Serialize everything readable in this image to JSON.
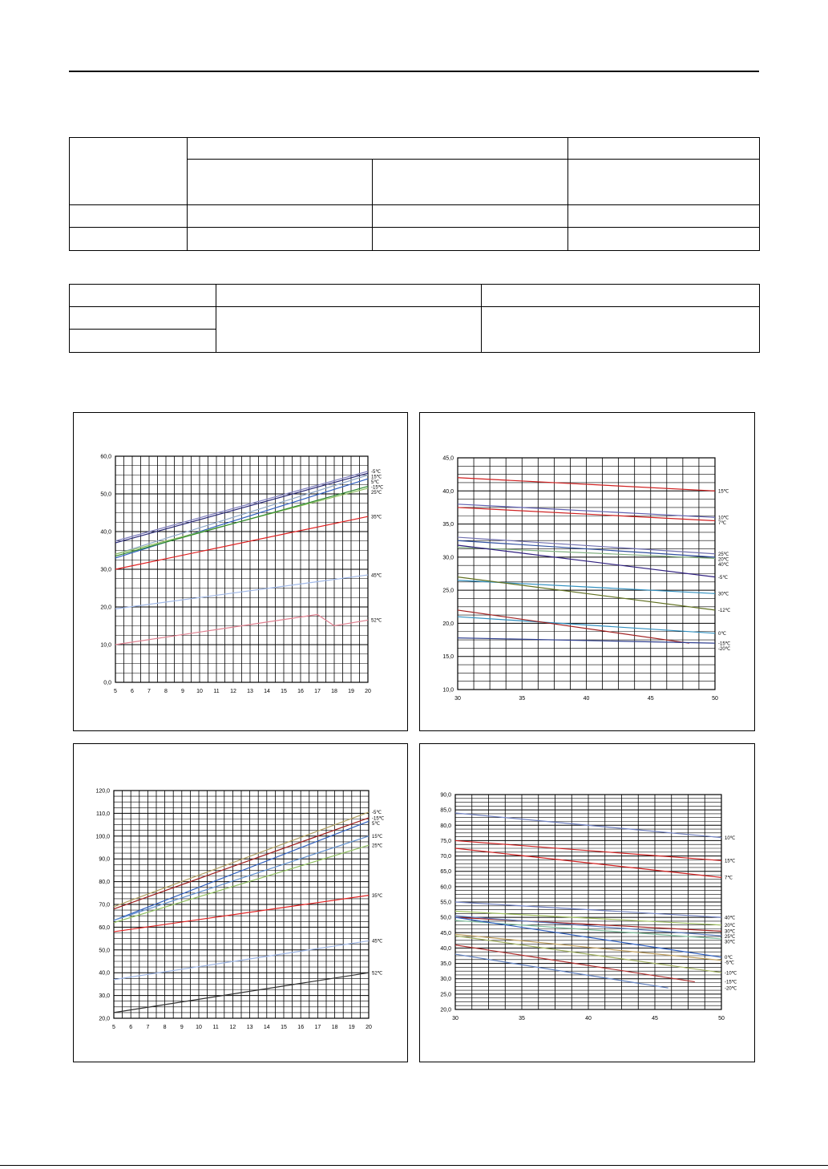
{
  "page": {
    "page_number": ""
  },
  "table1": {
    "rows": [
      [
        "",
        "",
        "",
        ""
      ],
      [
        "",
        "",
        "",
        ""
      ],
      [
        "",
        "",
        "",
        ""
      ],
      [
        "",
        "",
        "",
        ""
      ]
    ]
  },
  "table2": {
    "rows": [
      [
        "",
        "",
        ""
      ],
      [
        "",
        "",
        ""
      ],
      [
        "",
        "",
        ""
      ]
    ]
  },
  "chart_data": [
    {
      "type": "line",
      "title": "",
      "xlabel": "",
      "ylabel": "",
      "xlim": [
        5,
        20
      ],
      "ylim": [
        0,
        60
      ],
      "x_ticks": [
        "5",
        "6",
        "7",
        "8",
        "9",
        "10",
        "11",
        "12",
        "13",
        "14",
        "15",
        "16",
        "17",
        "18",
        "19",
        "20"
      ],
      "y_ticks": [
        "0,0",
        "10,0",
        "20,0",
        "30,0",
        "40,0",
        "50,0",
        "60,0"
      ],
      "grid": true,
      "series": [
        {
          "name": "-5℃",
          "color": "#7f7fbf",
          "x": [
            5,
            20
          ],
          "y": [
            37.5,
            56.0
          ]
        },
        {
          "name": "15℃",
          "color": "#2a2a7a",
          "x": [
            5,
            20
          ],
          "y": [
            37.0,
            55.5
          ]
        },
        {
          "name": "5℃",
          "color": "#8fa8c8",
          "x": [
            5,
            20
          ],
          "y": [
            34.0,
            55.0
          ]
        },
        {
          "name": "-15℃",
          "color": "#3060c0",
          "x": [
            5,
            20
          ],
          "y": [
            33.0,
            54.0
          ]
        },
        {
          "name": "25℃",
          "color": "#90c060",
          "x": [
            5,
            20
          ],
          "y": [
            34.0,
            51.5
          ]
        },
        {
          "name": "",
          "color": "#2e8b2e",
          "x": [
            5,
            20
          ],
          "y": [
            33.5,
            52.0
          ]
        },
        {
          "name": "35℃",
          "color": "#e02020",
          "x": [
            5,
            20
          ],
          "y": [
            30.0,
            44.0
          ]
        },
        {
          "name": "45℃",
          "color": "#a0b8e8",
          "x": [
            5,
            20
          ],
          "y": [
            19.5,
            28.5
          ]
        },
        {
          "name": "52℃",
          "color": "#e08090",
          "x": [
            5,
            17,
            18,
            20
          ],
          "y": [
            10.0,
            18.0,
            15.0,
            16.5
          ]
        }
      ]
    },
    {
      "type": "line",
      "title": "",
      "xlabel": "",
      "ylabel": "",
      "xlim": [
        30,
        50
      ],
      "ylim": [
        10,
        45
      ],
      "x_ticks": [
        "30",
        "35",
        "40",
        "45",
        "50"
      ],
      "y_ticks": [
        "10,0",
        "15,0",
        "20,0",
        "25,0",
        "30,0",
        "35,0",
        "40,0",
        "45,0"
      ],
      "grid": true,
      "series": [
        {
          "name": "15℃",
          "color": "#d02020",
          "x": [
            30,
            50
          ],
          "y": [
            42.0,
            40.0
          ]
        },
        {
          "name": "10℃",
          "color": "#6060b0",
          "x": [
            30,
            50
          ],
          "y": [
            38.0,
            36.0
          ]
        },
        {
          "name": "7℃",
          "color": "#d02020",
          "x": [
            30,
            50
          ],
          "y": [
            37.5,
            35.5
          ]
        },
        {
          "name": "25℃",
          "color": "#7070b0",
          "x": [
            30,
            50
          ],
          "y": [
            33.0,
            30.5
          ]
        },
        {
          "name": "20℃",
          "color": "#3050a0",
          "x": [
            30,
            50
          ],
          "y": [
            32.5,
            30.0
          ]
        },
        {
          "name": "40℃",
          "color": "#80b080",
          "x": [
            30,
            50
          ],
          "y": [
            31.5,
            29.8
          ]
        },
        {
          "name": "-5℃",
          "color": "#302080",
          "x": [
            30,
            50
          ],
          "y": [
            31.8,
            27.0
          ]
        },
        {
          "name": "30℃",
          "color": "#3090c0",
          "x": [
            30,
            50
          ],
          "y": [
            26.5,
            24.5
          ]
        },
        {
          "name": "-12℃",
          "color": "#607020",
          "x": [
            30,
            50
          ],
          "y": [
            27.0,
            22.0
          ]
        },
        {
          "name": "0℃",
          "color": "#3090c0",
          "x": [
            30,
            50
          ],
          "y": [
            21.0,
            18.5
          ]
        },
        {
          "name": "-15℃",
          "color": "#a02020",
          "x": [
            30,
            48
          ],
          "y": [
            22.0,
            17.0
          ]
        },
        {
          "name": "-20℃",
          "color": "#304090",
          "x": [
            30,
            50
          ],
          "y": [
            17.8,
            17.0
          ]
        }
      ]
    },
    {
      "type": "line",
      "title": "",
      "xlabel": "",
      "ylabel": "",
      "xlim": [
        5,
        20
      ],
      "ylim": [
        20,
        120
      ],
      "x_ticks": [
        "5",
        "6",
        "7",
        "8",
        "9",
        "10",
        "11",
        "12",
        "13",
        "14",
        "15",
        "16",
        "17",
        "18",
        "19",
        "20"
      ],
      "y_ticks": [
        "20,0",
        "30,0",
        "40,0",
        "50,0",
        "60,0",
        "70,0",
        "80,0",
        "90,0",
        "100,0",
        "110,0",
        "120,0"
      ],
      "grid": true,
      "series": [
        {
          "name": "-5℃",
          "color": "#b0a060",
          "x": [
            5,
            20
          ],
          "y": [
            69.0,
            110.5
          ]
        },
        {
          "name": "-15℃",
          "color": "#a02020",
          "x": [
            5,
            20
          ],
          "y": [
            68.0,
            108.0
          ]
        },
        {
          "name": "5℃",
          "color": "#3060c0",
          "x": [
            5,
            20
          ],
          "y": [
            63.0,
            106.5
          ]
        },
        {
          "name": "15℃",
          "color": "#6090d0",
          "x": [
            5,
            20
          ],
          "y": [
            63.0,
            100.0
          ]
        },
        {
          "name": "25℃",
          "color": "#90c060",
          "x": [
            5,
            20
          ],
          "y": [
            62.0,
            96.0
          ]
        },
        {
          "name": "35℃",
          "color": "#e02020",
          "x": [
            5,
            20
          ],
          "y": [
            58.0,
            74.0
          ]
        },
        {
          "name": "45℃",
          "color": "#a0b8e8",
          "x": [
            5,
            20
          ],
          "y": [
            37.0,
            54.0
          ]
        },
        {
          "name": "52℃",
          "color": "#303030",
          "x": [
            5,
            20
          ],
          "y": [
            22.5,
            40.0
          ]
        }
      ]
    },
    {
      "type": "line",
      "title": "",
      "xlabel": "",
      "ylabel": "",
      "xlim": [
        30,
        50
      ],
      "ylim": [
        20,
        90
      ],
      "x_ticks": [
        "30",
        "35",
        "40",
        "45",
        "50"
      ],
      "y_ticks": [
        "20,0",
        "25,0",
        "30,0",
        "35,0",
        "40,0",
        "45,0",
        "50,0",
        "55,0",
        "60,0",
        "65,0",
        "70,0",
        "75,0",
        "80,0",
        "85,0",
        "90,0"
      ],
      "grid": true,
      "series": [
        {
          "name": "10℃",
          "color": "#7080c0",
          "x": [
            30,
            50
          ],
          "y": [
            84.0,
            76.0
          ]
        },
        {
          "name": "15℃",
          "color": "#d02020",
          "x": [
            30,
            50
          ],
          "y": [
            75.0,
            68.5
          ]
        },
        {
          "name": "7℃",
          "color": "#d02020",
          "x": [
            30,
            50
          ],
          "y": [
            72.5,
            63.0
          ]
        },
        {
          "name": "40℃",
          "color": "#7080c0",
          "x": [
            30,
            50
          ],
          "y": [
            55.0,
            50.0
          ]
        },
        {
          "name": "20℃",
          "color": "#a0c060",
          "x": [
            30,
            50
          ],
          "y": [
            52.0,
            47.5
          ]
        },
        {
          "name": "30℃",
          "color": "#a02020",
          "x": [
            30,
            50
          ],
          "y": [
            50.0,
            45.5
          ]
        },
        {
          "name": "25℃",
          "color": "#6080c0",
          "x": [
            30,
            50
          ],
          "y": [
            50.5,
            44.0
          ]
        },
        {
          "name": "30℃",
          "color": "#80c0a0",
          "x": [
            30,
            50
          ],
          "y": [
            49.0,
            43.0
          ]
        },
        {
          "name": "0℃",
          "color": "#3060c0",
          "x": [
            30,
            50
          ],
          "y": [
            50.0,
            37.0
          ]
        },
        {
          "name": "-5℃",
          "color": "#c0a060",
          "x": [
            30,
            50
          ],
          "y": [
            44.5,
            36.0
          ]
        },
        {
          "name": "-10℃",
          "color": "#a0b060",
          "x": [
            30,
            50
          ],
          "y": [
            44.0,
            32.0
          ]
        },
        {
          "name": "-15℃",
          "color": "#b03030",
          "x": [
            30,
            48
          ],
          "y": [
            41.0,
            29.0
          ]
        },
        {
          "name": "-20℃",
          "color": "#6080c0",
          "x": [
            30,
            46
          ],
          "y": [
            38.0,
            27.0
          ]
        }
      ]
    }
  ]
}
